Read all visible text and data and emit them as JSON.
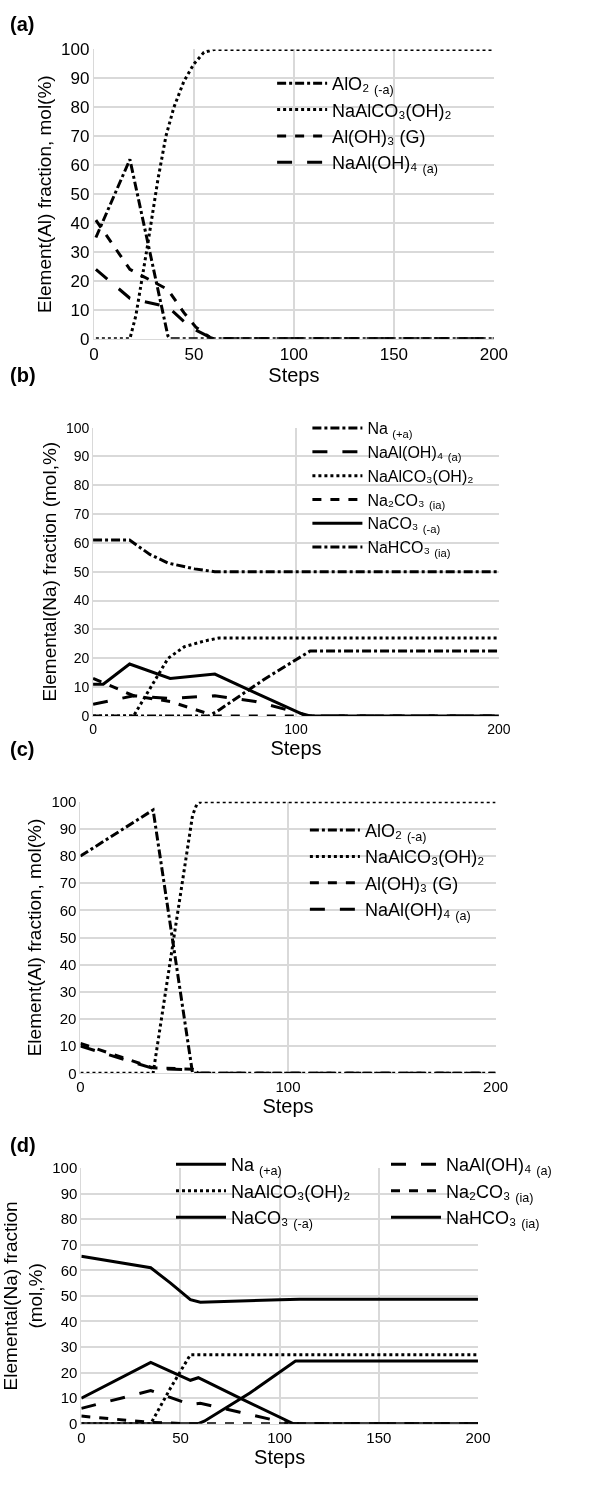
{
  "chart_data": [
    {
      "type": "line",
      "title": "(a)",
      "xlabel": "Steps",
      "ylabel": "Element(Al) fraction, mol(%)",
      "xlim": [
        0,
        200
      ],
      "xticks": [
        0,
        50,
        100,
        150,
        200
      ],
      "ylim": [
        0,
        100
      ],
      "yticks": [
        0,
        10,
        20,
        30,
        40,
        50,
        60,
        70,
        80,
        90,
        100
      ],
      "grid": true,
      "legend": "top right",
      "series": [
        {
          "name": "AlO₂ $_{(-a)}$",
          "color": "#000000",
          "line_style": "dashdot",
          "x": [
            1,
            18,
            37,
            38,
            200
          ],
          "values": [
            35,
            62,
            1,
            0,
            0
          ]
        },
        {
          "name": "NaAlCO₃(OH)₂",
          "color": "#000000",
          "line_style": "dotted",
          "x": [
            1,
            18,
            21,
            27,
            32,
            36,
            40,
            45,
            50,
            55,
            60,
            200
          ],
          "values": [
            0,
            0,
            8,
            33,
            55,
            70,
            80,
            89,
            95,
            99,
            100,
            100
          ]
        },
        {
          "name": "Al(OH)₃ (G)",
          "color": "#000000",
          "line_style": "dashed",
          "x": [
            1,
            18,
            37,
            45,
            51,
            58,
            60,
            200
          ],
          "values": [
            41,
            24,
            17,
            9,
            4,
            0.5,
            0,
            0
          ]
        },
        {
          "name": "NaAl(OH)₄ $_{(a)}$",
          "color": "#000000",
          "line_style": "longdash",
          "x": [
            1,
            18,
            37,
            45,
            51,
            58,
            60,
            200
          ],
          "values": [
            24,
            14,
            11,
            6,
            3,
            0.5,
            0,
            0
          ]
        }
      ]
    },
    {
      "type": "line",
      "title": "(b)",
      "xlabel": "Steps",
      "ylabel": "Elemental(Na) fraction (mol,%)",
      "xlim": [
        0,
        200
      ],
      "xticks": [
        0,
        100,
        200
      ],
      "ylim": [
        0,
        100
      ],
      "yticks": [
        0,
        10,
        20,
        30,
        40,
        50,
        60,
        70,
        80,
        90,
        100
      ],
      "grid": true,
      "legend": "top right",
      "series": [
        {
          "name": "Na $_{(+a)}$",
          "color": "#000000",
          "line_style": "dashdot",
          "x": [
            0,
            18,
            28,
            37,
            50,
            60,
            200
          ],
          "values": [
            61,
            61,
            56,
            53,
            51,
            50,
            50
          ]
        },
        {
          "name": "NaAl(OH)₄ $_{(a)}$",
          "color": "#000000",
          "line_style": "longdash",
          "x": [
            0,
            20,
            38,
            60,
            80,
            107,
            200
          ],
          "values": [
            4,
            7,
            6,
            7,
            5,
            0,
            0
          ]
        },
        {
          "name": "NaAlCO₃(OH)₂",
          "color": "#000000",
          "line_style": "dotted",
          "x": [
            0,
            20,
            37,
            45,
            55,
            62,
            200
          ],
          "values": [
            0,
            0,
            20,
            24,
            26,
            27,
            27
          ]
        },
        {
          "name": "Na₂CO₃ $_{(ia)}$",
          "color": "#000000",
          "line_style": "dashed",
          "x": [
            0,
            20,
            38,
            60,
            200
          ],
          "values": [
            13,
            7,
            5,
            0,
            0
          ]
        },
        {
          "name": "NaCO₃ $_{(-a)}$",
          "color": "#000000",
          "line_style": "solid",
          "x": [
            0,
            5,
            18,
            38,
            60,
            80,
            105,
            200
          ],
          "values": [
            11,
            11,
            18,
            13,
            14.5,
            8,
            0,
            0
          ]
        },
        {
          "name": "NaHCO₃ $_{(ia)}$",
          "color": "#000000",
          "line_style": "dashdot",
          "x": [
            0,
            57,
            62,
            85,
            107,
            200
          ],
          "values": [
            0,
            0,
            2,
            13,
            22.5,
            22.5
          ]
        }
      ]
    },
    {
      "type": "line",
      "title": "(c)",
      "xlabel": "Steps",
      "ylabel": "Element(Al) fraction, mol(%)",
      "xlim": [
        0,
        200
      ],
      "xticks": [
        0,
        100,
        200
      ],
      "ylim": [
        0,
        100
      ],
      "yticks": [
        0,
        10,
        20,
        30,
        40,
        50,
        60,
        70,
        80,
        90,
        100
      ],
      "grid": true,
      "legend": "top right",
      "series": [
        {
          "name": "AlO₂ $_{(-a)}$",
          "color": "#000000",
          "line_style": "dashdot",
          "x": [
            0,
            35,
            54,
            200
          ],
          "values": [
            80,
            97,
            0,
            0
          ]
        },
        {
          "name": "NaAlCO₃(OH)₂",
          "color": "#000000",
          "line_style": "dotted",
          "x": [
            0,
            35,
            45,
            54,
            56,
            58,
            200
          ],
          "values": [
            0,
            0,
            50,
            95,
            99,
            100,
            100
          ]
        },
        {
          "name": "Al(OH)₃ (G)",
          "color": "#000000",
          "line_style": "dashed",
          "x": [
            0,
            35,
            54,
            57,
            200
          ],
          "values": [
            11,
            2,
            1.5,
            0,
            0
          ]
        },
        {
          "name": "NaAl(OH)₄ $_{(a)}$",
          "color": "#000000",
          "line_style": "longdash",
          "x": [
            0,
            35,
            54,
            57,
            200
          ],
          "values": [
            10,
            1.8,
            1.2,
            0,
            0
          ]
        }
      ]
    },
    {
      "type": "line",
      "title": "(d)",
      "xlabel": "Steps",
      "ylabel": "Elemental(Na) fraction\n(mol,%)",
      "xlim": [
        0,
        200
      ],
      "xticks": [
        0,
        50,
        100,
        150,
        200
      ],
      "ylim": [
        0,
        100
      ],
      "yticks": [
        0,
        10,
        20,
        30,
        40,
        50,
        60,
        70,
        80,
        90,
        100
      ],
      "grid": true,
      "legend": "top",
      "series": [
        {
          "name": "Na $_{(+a)}$",
          "color": "#000000",
          "line_style": "solid",
          "x": [
            0,
            35,
            45,
            55,
            60,
            80,
            100,
            110,
            200
          ],
          "values": [
            65.5,
            61,
            55,
            48.5,
            47.5,
            48,
            48.5,
            48.7,
            48.7
          ]
        },
        {
          "name": "NaAl(OH)₄ $_{(a)}$",
          "color": "#000000",
          "line_style": "longdash",
          "x": [
            0,
            35,
            55,
            60,
            80,
            105,
            200
          ],
          "values": [
            6,
            13,
            7.5,
            8,
            4.5,
            0,
            0
          ]
        },
        {
          "name": "NaAlCO₃(OH)₂",
          "color": "#000000",
          "line_style": "dotted",
          "x": [
            0,
            35,
            45,
            55,
            200
          ],
          "values": [
            0,
            0,
            14,
            27,
            27
          ]
        },
        {
          "name": "Na₂CO₃ $_{(ia)}$",
          "color": "#000000",
          "line_style": "dashed",
          "x": [
            0,
            35,
            55,
            200
          ],
          "values": [
            3,
            0.5,
            0,
            0
          ]
        },
        {
          "name": "NaCO₃ $_{(-a)}$",
          "color": "#000000",
          "line_style": "solid",
          "x": [
            0,
            35,
            55,
            59,
            80,
            107,
            200
          ],
          "values": [
            10,
            24,
            17,
            18,
            10,
            0,
            0
          ]
        },
        {
          "name": "NaHCO₃ $_{(ia)}$",
          "color": "#000000",
          "line_style": "solid",
          "x": [
            0,
            59,
            62,
            85,
            108,
            200
          ],
          "values": [
            0,
            0,
            1,
            12,
            24.5,
            24.5
          ]
        }
      ]
    }
  ]
}
